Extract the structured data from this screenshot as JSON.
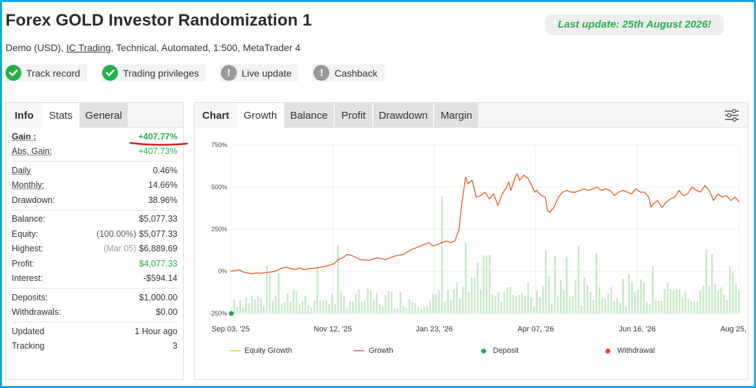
{
  "header": {
    "title": "Forex GOLD Investor Randomization 1",
    "last_update": "Last update: 25th August 2026!",
    "subtitle_pre": "Demo (USD), ",
    "subtitle_link": "IC Trading",
    "subtitle_post": ", Technical, Automated, 1:500, MetaTrader 4"
  },
  "badges": [
    {
      "label": "Track record",
      "status": "verified",
      "icon": "check-icon"
    },
    {
      "label": "Trading privileges",
      "status": "verified",
      "icon": "check-icon"
    },
    {
      "label": "Live update",
      "status": "unverified",
      "icon": "exclamation-icon"
    },
    {
      "label": "Cashback",
      "status": "unverified",
      "icon": "exclamation-icon"
    }
  ],
  "left_tabs": {
    "info": "Info",
    "stats": "Stats",
    "general": "General"
  },
  "stats": {
    "gain": {
      "label": "Gain :",
      "value": "+407.77%"
    },
    "abs_gain": {
      "label": "Abs. Gain:",
      "value": "+407.73%"
    },
    "daily": {
      "label": "Daily",
      "value": "0.46%"
    },
    "monthly": {
      "label": "Monthly:",
      "value": "14.66%"
    },
    "drawdown": {
      "label": "Drawdown:",
      "value": "38.96%"
    },
    "balance": {
      "label": "Balance:",
      "value": "$5,077.33"
    },
    "equity": {
      "label": "Equity:",
      "note": "(100.00%)",
      "value": "$5,077.33"
    },
    "highest": {
      "label": "Highest:",
      "note": "(Mar 05)",
      "value": "$6,889.69"
    },
    "profit": {
      "label": "Profit:",
      "value": "$4,077.33"
    },
    "interest": {
      "label": "Interest:",
      "value": "-$594.14"
    },
    "deposits": {
      "label": "Deposits:",
      "value": "$1,000.00"
    },
    "withdrawals": {
      "label": "Withdrawals:",
      "value": "$0.00"
    },
    "updated": {
      "label": "Updated",
      "value": "1 Hour ago"
    },
    "tracking": {
      "label": "Tracking",
      "value": "3"
    }
  },
  "chart_tabs": {
    "chart": "Chart",
    "growth": "Growth",
    "balance": "Balance",
    "profit": "Profit",
    "drawdown": "Drawdown",
    "margin": "Margin"
  },
  "colors": {
    "accent_green": "#22b14c",
    "growth_line": "#e8551e",
    "volume_bars": "#b9e3b9",
    "equity_line": "#f2d64b",
    "withdrawal": "#e53935",
    "frame": "#1aa3e8"
  },
  "chart_data": {
    "type": "line",
    "x_tick_labels": [
      "Sep 03, '25",
      "Nov 12, '25",
      "Jan 23, '26",
      "Apr 07, '26",
      "Jun 16, '26",
      "Aug 25, '26"
    ],
    "y_tick_labels": [
      "750%",
      "500%",
      "250%",
      "0%",
      "-250%"
    ],
    "ylim": [
      -250,
      750
    ],
    "grid": true,
    "legend": [
      "Equity Growth",
      "Growth",
      "Deposit",
      "Withdrawal"
    ],
    "legend_placement": "bottom",
    "series": [
      {
        "name": "Growth",
        "points": [
          [
            0,
            0
          ],
          [
            0.01,
            5
          ],
          [
            0.02,
            8
          ],
          [
            0.03,
            -5
          ],
          [
            0.04,
            -10
          ],
          [
            0.05,
            -15
          ],
          [
            0.06,
            -10
          ],
          [
            0.07,
            -12
          ],
          [
            0.08,
            -8
          ],
          [
            0.09,
            -5
          ],
          [
            0.1,
            -2
          ],
          [
            0.11,
            8
          ],
          [
            0.12,
            20
          ],
          [
            0.13,
            25
          ],
          [
            0.14,
            15
          ],
          [
            0.15,
            12
          ],
          [
            0.16,
            20
          ],
          [
            0.17,
            10
          ],
          [
            0.18,
            15
          ],
          [
            0.2,
            20
          ],
          [
            0.22,
            30
          ],
          [
            0.24,
            45
          ],
          [
            0.25,
            70
          ],
          [
            0.26,
            80
          ],
          [
            0.27,
            100
          ],
          [
            0.28,
            95
          ],
          [
            0.3,
            70
          ],
          [
            0.32,
            65
          ],
          [
            0.34,
            80
          ],
          [
            0.36,
            70
          ],
          [
            0.38,
            90
          ],
          [
            0.4,
            100
          ],
          [
            0.42,
            130
          ],
          [
            0.44,
            150
          ],
          [
            0.45,
            160
          ],
          [
            0.46,
            170
          ],
          [
            0.47,
            150
          ],
          [
            0.48,
            160
          ],
          [
            0.49,
            170
          ],
          [
            0.5,
            180
          ],
          [
            0.51,
            170
          ],
          [
            0.52,
            180
          ],
          [
            0.53,
            250
          ],
          [
            0.535,
            380
          ],
          [
            0.54,
            470
          ],
          [
            0.545,
            560
          ],
          [
            0.55,
            520
          ],
          [
            0.56,
            540
          ],
          [
            0.57,
            440
          ],
          [
            0.58,
            450
          ],
          [
            0.59,
            470
          ],
          [
            0.6,
            430
          ],
          [
            0.61,
            460
          ],
          [
            0.62,
            390
          ],
          [
            0.63,
            460
          ],
          [
            0.64,
            500
          ],
          [
            0.645,
            530
          ],
          [
            0.65,
            480
          ],
          [
            0.66,
            560
          ],
          [
            0.665,
            580
          ],
          [
            0.67,
            540
          ],
          [
            0.68,
            570
          ],
          [
            0.69,
            550
          ],
          [
            0.7,
            500
          ],
          [
            0.705,
            470
          ],
          [
            0.71,
            480
          ],
          [
            0.72,
            450
          ],
          [
            0.73,
            440
          ],
          [
            0.735,
            360
          ],
          [
            0.74,
            350
          ],
          [
            0.75,
            380
          ],
          [
            0.76,
            440
          ],
          [
            0.77,
            470
          ],
          [
            0.78,
            480
          ],
          [
            0.79,
            470
          ],
          [
            0.8,
            470
          ],
          [
            0.81,
            480
          ],
          [
            0.82,
            490
          ],
          [
            0.83,
            480
          ],
          [
            0.84,
            490
          ],
          [
            0.85,
            500
          ],
          [
            0.86,
            480
          ],
          [
            0.87,
            490
          ],
          [
            0.88,
            480
          ],
          [
            0.89,
            450
          ],
          [
            0.9,
            470
          ],
          [
            0.91,
            480
          ],
          [
            0.92,
            470
          ],
          [
            0.93,
            460
          ],
          [
            0.94,
            490
          ],
          [
            0.95,
            470
          ],
          [
            0.96,
            470
          ],
          [
            0.97,
            440
          ],
          [
            0.975,
            380
          ],
          [
            0.98,
            400
          ],
          [
            0.99,
            420
          ],
          [
            1.0,
            380
          ],
          [
            1.01,
            410
          ],
          [
            1.02,
            430
          ],
          [
            1.03,
            440
          ],
          [
            1.04,
            480
          ],
          [
            1.05,
            450
          ],
          [
            1.06,
            460
          ],
          [
            1.07,
            500
          ],
          [
            1.08,
            480
          ],
          [
            1.09,
            470
          ],
          [
            1.1,
            510
          ],
          [
            1.11,
            480
          ],
          [
            1.12,
            420
          ],
          [
            1.13,
            460
          ],
          [
            1.14,
            440
          ],
          [
            1.15,
            450
          ],
          [
            1.16,
            420
          ],
          [
            1.17,
            440
          ],
          [
            1.18,
            410
          ]
        ]
      }
    ],
    "deposits": [
      [
        0,
        -250
      ]
    ]
  }
}
